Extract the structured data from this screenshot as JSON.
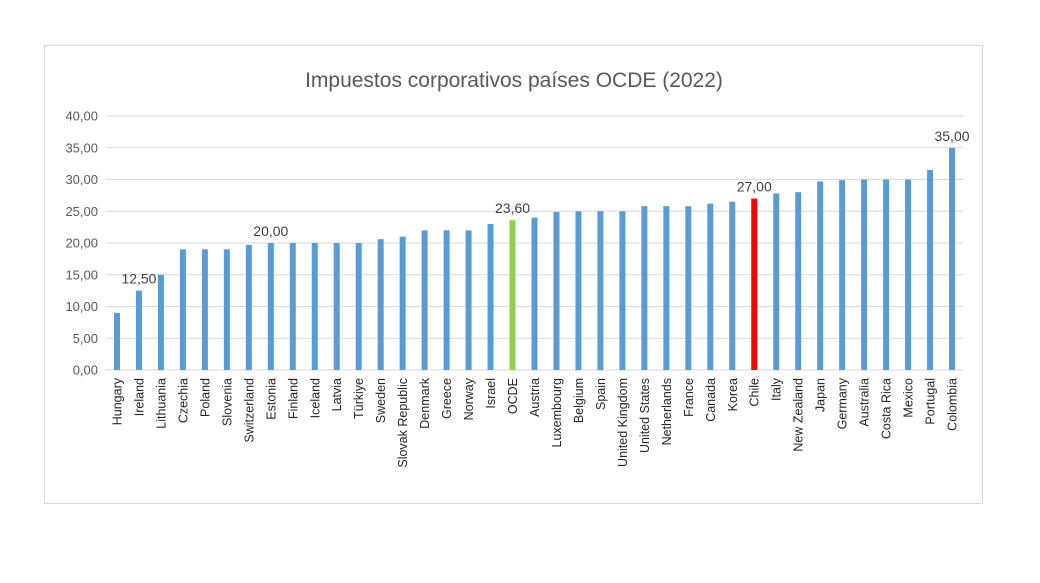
{
  "chart_data": {
    "type": "bar",
    "title": "Impuestos corporativos países OCDE (2022)",
    "xlabel": "",
    "ylabel": "",
    "ylim": [
      0,
      40
    ],
    "yticks": [
      "0,00",
      "5,00",
      "10,00",
      "15,00",
      "20,00",
      "25,00",
      "30,00",
      "35,00",
      "40,00"
    ],
    "grid": true,
    "legend": "none",
    "colors": {
      "default": "#5b9bd5",
      "highlight_ocde": "#92d050",
      "highlight_chile": "#ff0000",
      "grid": "#d9d9d9"
    },
    "categories": [
      "Hungary",
      "Ireland",
      "Lithuania",
      "Czechia",
      "Poland",
      "Slovenia",
      "Switzerland",
      "Estonia",
      "Finland",
      "Iceland",
      "Latvia",
      "Türkiye",
      "Sweden",
      "Slovak Republic",
      "Denmark",
      "Greece",
      "Norway",
      "Israel",
      "OCDE",
      "Austria",
      "Luxembourg",
      "Belgium",
      "Spain",
      "United Kingdom",
      "United States",
      "Netherlands",
      "France",
      "Canada",
      "Korea",
      "Chile",
      "Italy",
      "New Zealand",
      "Japan",
      "Germany",
      "Australia",
      "Costa Rica",
      "Mexico",
      "Portugal",
      "Colombia"
    ],
    "values": [
      9,
      12.5,
      15,
      19,
      19,
      19,
      19.7,
      20,
      20,
      20,
      20,
      20,
      20.6,
      21,
      22,
      22,
      22,
      23,
      23.6,
      24,
      24.9,
      25,
      25,
      25,
      25.8,
      25.8,
      25.8,
      26.2,
      26.5,
      27,
      27.8,
      28,
      29.7,
      29.9,
      30,
      30,
      30,
      31.5,
      35
    ],
    "bar_colors": {
      "OCDE": "#92d050",
      "Chile": "#ff0000"
    },
    "data_labels": [
      {
        "category": "Ireland",
        "text": "12,50"
      },
      {
        "category": "Estonia",
        "text": "20,00"
      },
      {
        "category": "OCDE",
        "text": "23,60"
      },
      {
        "category": "Chile",
        "text": "27,00"
      },
      {
        "category": "Colombia",
        "text": "35,00"
      }
    ]
  }
}
